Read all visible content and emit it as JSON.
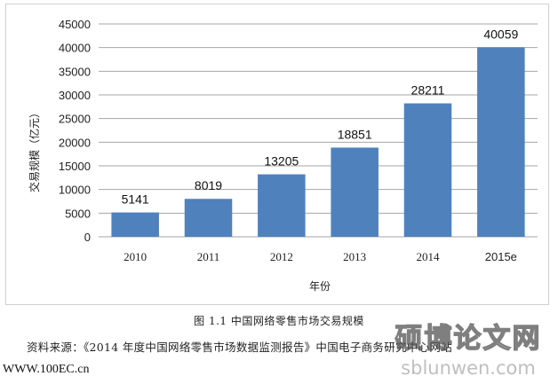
{
  "chart_data": {
    "type": "bar",
    "categories": [
      "2010",
      "2011",
      "2012",
      "2013",
      "2014",
      "2015e"
    ],
    "values": [
      5141,
      8019,
      13205,
      18851,
      28211,
      40059
    ],
    "data_labels": [
      "5141",
      "8019",
      "13205",
      "18851",
      "28211",
      "40059"
    ],
    "xlabel": "年份",
    "ylabel": "交易规模（亿元）",
    "ylim": [
      0,
      45000
    ],
    "yticks": [
      0,
      5000,
      10000,
      15000,
      20000,
      25000,
      30000,
      35000,
      40000,
      45000
    ],
    "grid": true,
    "bar_color": "#4F81BD",
    "grid_color": "#a6a6a6"
  },
  "caption": "图 1.1    中国网络零售市场交易规模",
  "source": "资料来源：《2014 年度中国网络零售市场数据监测报告》中国电子商务研究中心网站",
  "site": "WWW.100EC.cn",
  "watermark": {
    "cn": "硕博论文网",
    "url": "sblunwen.com"
  }
}
